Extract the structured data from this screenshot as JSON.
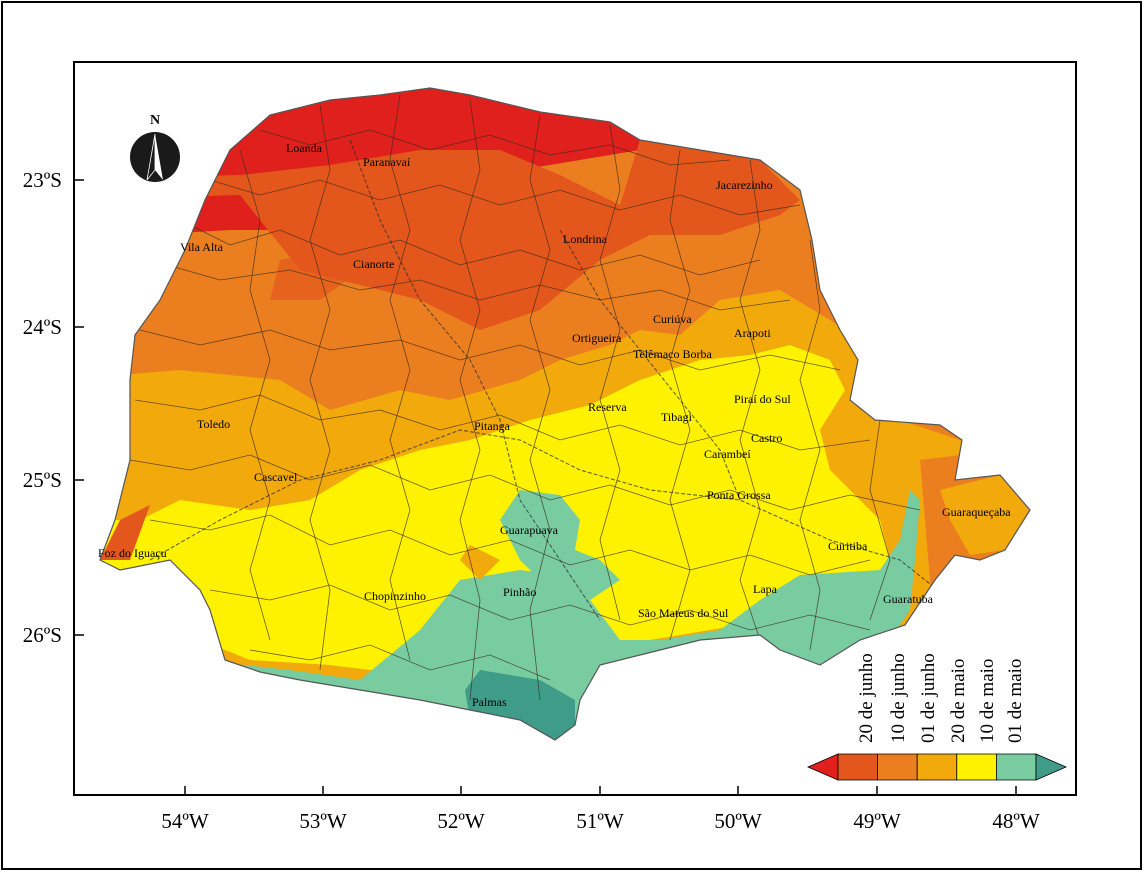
{
  "north_arrow": {
    "label": "N",
    "icon": "north-arrow-icon"
  },
  "axes": {
    "lon_ticks": [
      "54ºW",
      "53ºW",
      "52ºW",
      "51ºW",
      "50ºW",
      "49ºW",
      "48ºW"
    ],
    "lat_ticks": [
      "23ºS",
      "24ºS",
      "25ºS",
      "26ºS"
    ]
  },
  "cities": [
    "Loanda",
    "Paranavaí",
    "Jacarezinho",
    "Vila Alta",
    "Cianorte",
    "Londrina",
    "Curiúva",
    "Arapoti",
    "Ortigueira",
    "Telêmaco Borba",
    "Piraí do Sul",
    "Reserva",
    "Tibagi",
    "Toledo",
    "Pitanga",
    "Castro",
    "Carambeí",
    "Cascavel",
    "Ponta Grossa",
    "Guarapuava",
    "Guaraqueçaba",
    "Curitiba",
    "Foz do Iguaçu",
    "Pinhão",
    "Lapa",
    "Chopinzinho",
    "São Mateus do Sul",
    "Guaratuba",
    "Palmas"
  ],
  "legend": {
    "labels": [
      "20 de junho",
      "10 de junho",
      "01 de junho",
      "20 de maio",
      "10 de maio",
      "01 de maio"
    ],
    "colors": [
      "#e0201c",
      "#e4571c",
      "#eb7f1f",
      "#f2a90c",
      "#fff200",
      "#79cca0",
      "#3e9c88"
    ]
  }
}
